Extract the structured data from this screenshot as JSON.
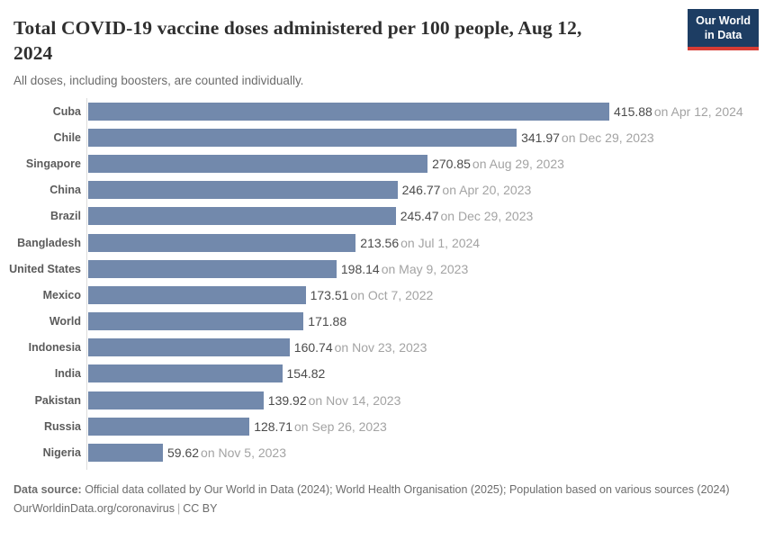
{
  "header": {
    "title_line1": "Total COVID-19 vaccine doses administered per 100 people, Aug 12,",
    "title_line2": "2024",
    "subtitle": "All doses, including boosters, are counted individually.",
    "logo_line1": "Our World",
    "logo_line2": "in Data"
  },
  "chart_data": {
    "type": "bar",
    "orientation": "horizontal",
    "title": "Total COVID-19 vaccine doses administered per 100 people, Aug 12, 2024",
    "subtitle": "All doses, including boosters, are counted individually.",
    "unit": "doses per 100 people",
    "xlim": [
      0,
      430
    ],
    "grid": false,
    "legend": "none",
    "bar_color": "#7289ac",
    "axis_line_color": "#dcdcdc",
    "rows": [
      {
        "entity": "Cuba",
        "value": 415.88,
        "value_label": "415.88",
        "date_label": "on Apr 12, 2024"
      },
      {
        "entity": "Chile",
        "value": 341.97,
        "value_label": "341.97",
        "date_label": "on Dec 29, 2023"
      },
      {
        "entity": "Singapore",
        "value": 270.85,
        "value_label": "270.85",
        "date_label": "on Aug 29, 2023"
      },
      {
        "entity": "China",
        "value": 246.77,
        "value_label": "246.77",
        "date_label": "on Apr 20, 2023"
      },
      {
        "entity": "Brazil",
        "value": 245.47,
        "value_label": "245.47",
        "date_label": "on Dec 29, 2023"
      },
      {
        "entity": "Bangladesh",
        "value": 213.56,
        "value_label": "213.56",
        "date_label": "on Jul 1, 2024"
      },
      {
        "entity": "United States",
        "value": 198.14,
        "value_label": "198.14",
        "date_label": "on May 9, 2023"
      },
      {
        "entity": "Mexico",
        "value": 173.51,
        "value_label": "173.51",
        "date_label": "on Oct 7, 2022"
      },
      {
        "entity": "World",
        "value": 171.88,
        "value_label": "171.88",
        "date_label": ""
      },
      {
        "entity": "Indonesia",
        "value": 160.74,
        "value_label": "160.74",
        "date_label": "on Nov 23, 2023"
      },
      {
        "entity": "India",
        "value": 154.82,
        "value_label": "154.82",
        "date_label": ""
      },
      {
        "entity": "Pakistan",
        "value": 139.92,
        "value_label": "139.92",
        "date_label": "on Nov 14, 2023"
      },
      {
        "entity": "Russia",
        "value": 128.71,
        "value_label": "128.71",
        "date_label": "on Sep 26, 2023"
      },
      {
        "entity": "Nigeria",
        "value": 59.62,
        "value_label": "59.62",
        "date_label": "on Nov 5, 2023"
      }
    ]
  },
  "footer": {
    "source_label": "Data source:",
    "source_text": " Official data collated by Our World in Data (2024); World Health Organisation (2025); Population based on various sources (2024)",
    "link_text": "OurWorldinData.org/coronavirus",
    "separator": "|",
    "license_text": "CC BY"
  },
  "colors": {
    "bar": "#7289ac",
    "logo_background": "#1d3d63",
    "logo_accent": "#d73c34",
    "title_text": "#2f2f2f",
    "muted_text": "#6d6d6d",
    "date_text": "#a3a3a3"
  }
}
